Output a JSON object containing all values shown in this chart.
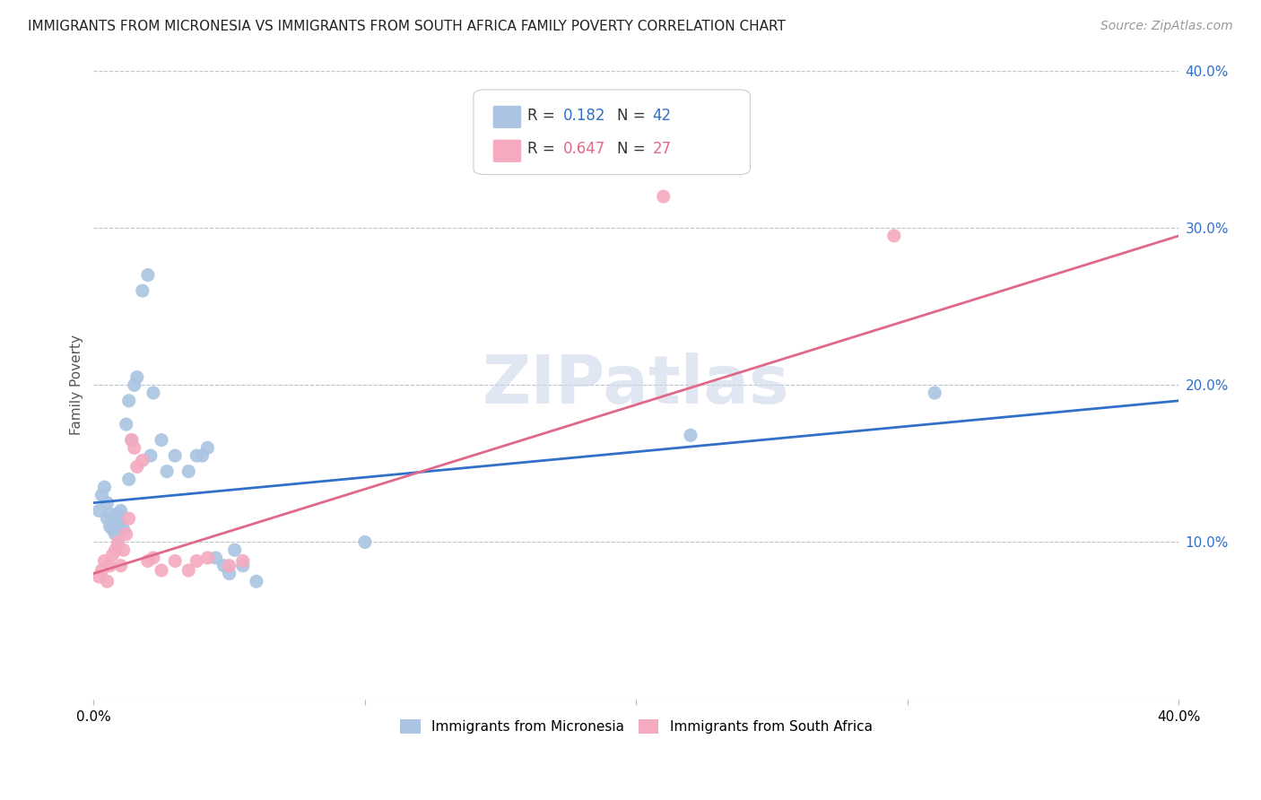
{
  "title": "IMMIGRANTS FROM MICRONESIA VS IMMIGRANTS FROM SOUTH AFRICA FAMILY POVERTY CORRELATION CHART",
  "source": "Source: ZipAtlas.com",
  "ylabel": "Family Poverty",
  "xlim": [
    0.0,
    0.4
  ],
  "ylim": [
    0.0,
    0.4
  ],
  "micronesia_color": "#aac4e2",
  "south_africa_color": "#f5aabf",
  "micronesia_line_color": "#3070c8",
  "south_africa_line_color": "#e06888",
  "watermark_color": "#cdd8ea",
  "mic_r": 0.182,
  "mic_n": 42,
  "sa_r": 0.647,
  "sa_n": 27,
  "micronesia_x": [
    0.002,
    0.003,
    0.004,
    0.005,
    0.005,
    0.006,
    0.006,
    0.007,
    0.007,
    0.008,
    0.008,
    0.009,
    0.009,
    0.01,
    0.01,
    0.011,
    0.012,
    0.013,
    0.013,
    0.014,
    0.015,
    0.016,
    0.018,
    0.02,
    0.021,
    0.022,
    0.025,
    0.027,
    0.03,
    0.035,
    0.038,
    0.04,
    0.042,
    0.045,
    0.048,
    0.05,
    0.052,
    0.055,
    0.06,
    0.1,
    0.22,
    0.31
  ],
  "micronesia_y": [
    0.12,
    0.13,
    0.135,
    0.115,
    0.125,
    0.118,
    0.11,
    0.108,
    0.112,
    0.115,
    0.105,
    0.098,
    0.118,
    0.112,
    0.12,
    0.108,
    0.175,
    0.19,
    0.14,
    0.165,
    0.2,
    0.205,
    0.26,
    0.27,
    0.155,
    0.195,
    0.165,
    0.145,
    0.155,
    0.145,
    0.155,
    0.155,
    0.16,
    0.09,
    0.085,
    0.08,
    0.095,
    0.085,
    0.075,
    0.1,
    0.168,
    0.195
  ],
  "south_africa_x": [
    0.002,
    0.003,
    0.004,
    0.005,
    0.006,
    0.007,
    0.008,
    0.009,
    0.01,
    0.011,
    0.012,
    0.013,
    0.014,
    0.015,
    0.016,
    0.018,
    0.02,
    0.022,
    0.025,
    0.03,
    0.035,
    0.038,
    0.042,
    0.05,
    0.055,
    0.21,
    0.295
  ],
  "south_africa_y": [
    0.078,
    0.082,
    0.088,
    0.075,
    0.085,
    0.092,
    0.095,
    0.1,
    0.085,
    0.095,
    0.105,
    0.115,
    0.165,
    0.16,
    0.148,
    0.152,
    0.088,
    0.09,
    0.082,
    0.088,
    0.082,
    0.088,
    0.09,
    0.085,
    0.088,
    0.32,
    0.295
  ]
}
